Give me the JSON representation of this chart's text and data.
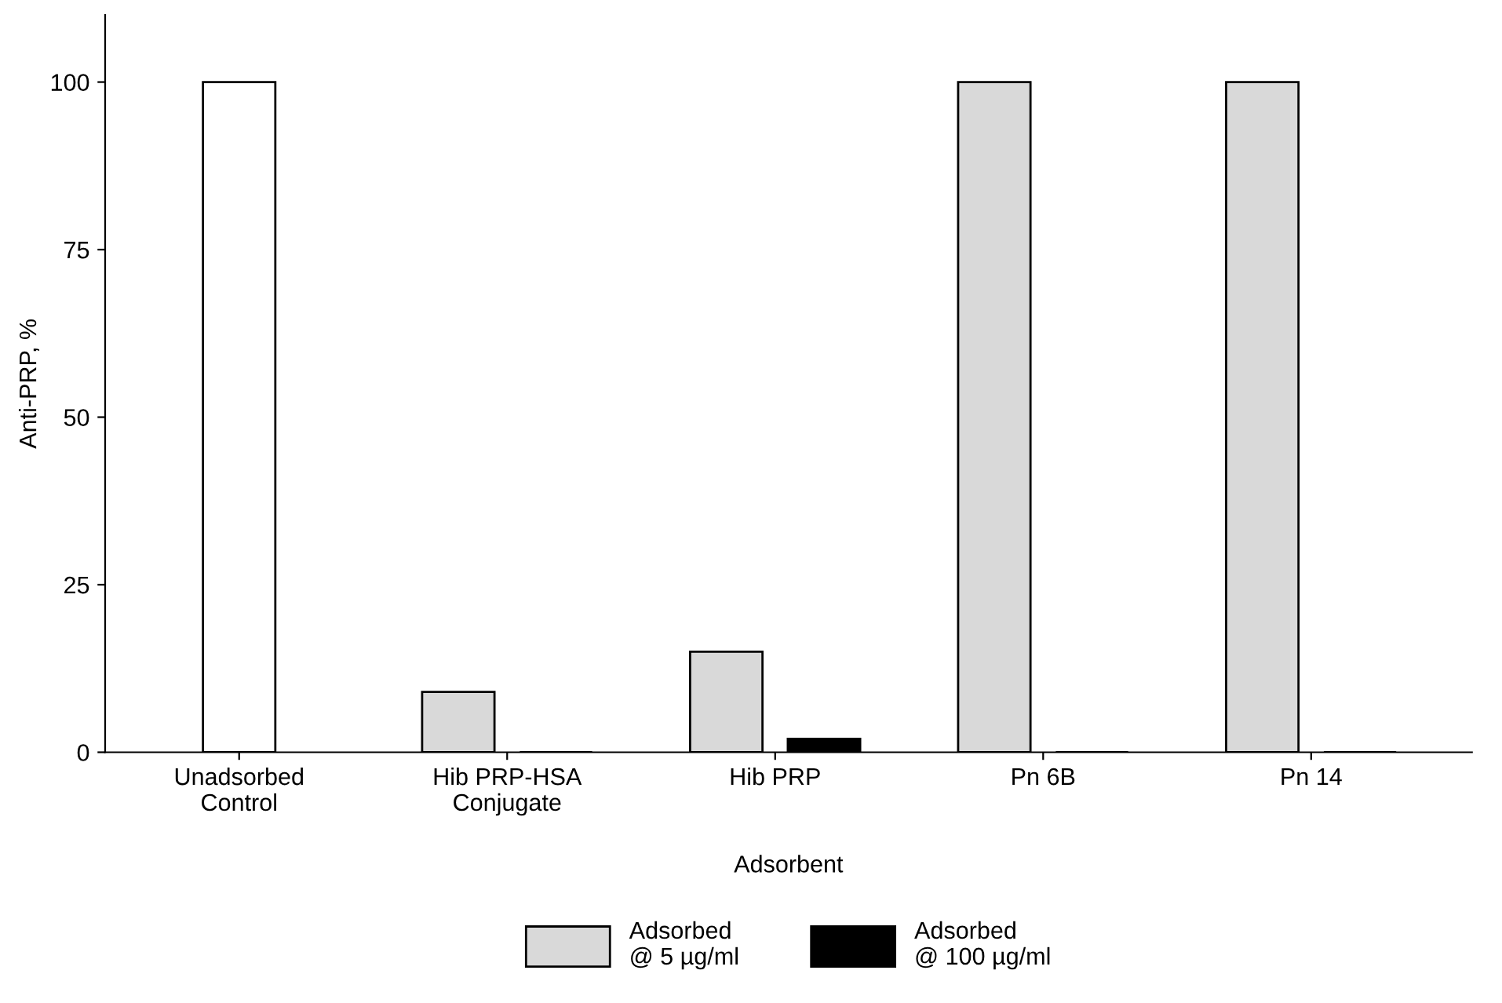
{
  "chart_data": {
    "type": "bar",
    "xlabel": "Adsorbent",
    "ylabel": "Anti-PRP, %",
    "categories": [
      "Unadsorbed\nControl",
      "Hib PRP-HSA\nConjugate",
      "Hib PRP",
      "Pn 6B",
      "Pn 14"
    ],
    "series": [
      {
        "color": "#ffffff",
        "values": [
          100,
          null,
          null,
          null,
          null
        ]
      },
      {
        "name": "Adsorbed\n@ 5 µg/ml",
        "color": "#d9d9d9",
        "values": [
          null,
          9,
          15,
          100,
          100
        ]
      },
      {
        "name": "Adsorbed\n@ 100 µg/ml",
        "color": "#000000",
        "values": [
          null,
          0,
          2,
          0,
          0
        ]
      }
    ],
    "ylim": [
      0,
      110
    ],
    "yticks": [
      0,
      25,
      50,
      75,
      100
    ],
    "grid": false,
    "legend": "bottom"
  }
}
